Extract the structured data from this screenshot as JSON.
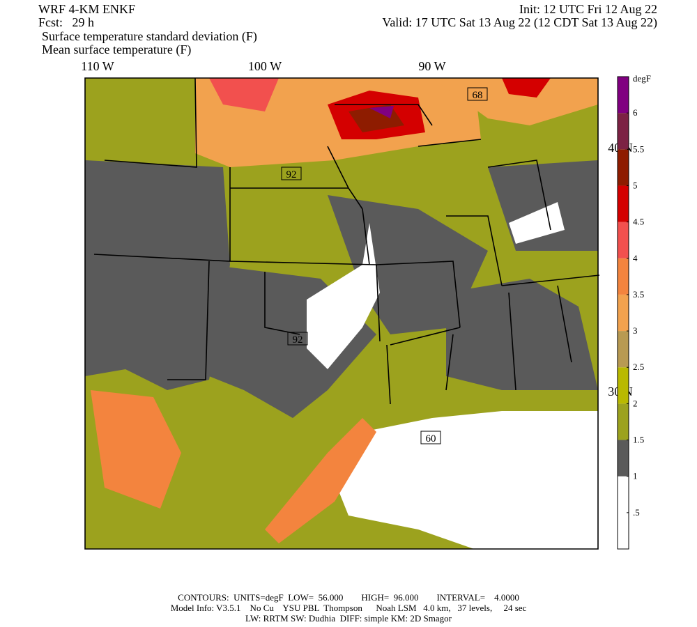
{
  "header": {
    "model": "WRF 4-KM ENKF",
    "forecast": "Fcst:   29 h",
    "init": "Init: 12 UTC Fri 12 Aug 22",
    "valid": "Valid: 17 UTC Sat 13 Aug 22 (12 CDT Sat 13 Aug 22)",
    "field_shaded": "Surface temperature standard deviation (F)",
    "field_contoured": "Mean surface temperature (F)"
  },
  "map": {
    "longitude_labels": [
      "110 W",
      "100 W",
      "90 W"
    ],
    "latitude_labels": [
      "40 N",
      "30 N"
    ],
    "contour_labels": [
      "92",
      "92",
      "68",
      "60"
    ]
  },
  "colorbar": {
    "unit": "degF",
    "range": [
      0,
      6.5
    ],
    "ticks": [
      {
        "value": 0.5,
        "label": ".5"
      },
      1,
      1.5,
      2,
      2.5,
      3,
      3.5,
      4,
      4.5,
      5,
      5.5,
      6
    ],
    "colors": [
      "#ffffff",
      "#ffffff",
      "#5a5a5a",
      "#9ca21e",
      "#b9b900",
      "#b89a52",
      "#f2a24e",
      "#f3843e",
      "#f2504e",
      "#d40000",
      "#8e1c00",
      "#7c2244",
      "#800080"
    ]
  },
  "footer": {
    "contours": "CONTOURS:  UNITS=degF  LOW=  56.000        HIGH=  96.000        INTERVAL=    4.0000",
    "model_info": "Model Info: V3.5.1    No Cu    YSU PBL  Thompson      Noah LSM   4.0 km,   37 levels,     24 sec",
    "physics": "LW: RRTM SW: Dudhia  DIFF: simple KM: 2D Smagor"
  }
}
